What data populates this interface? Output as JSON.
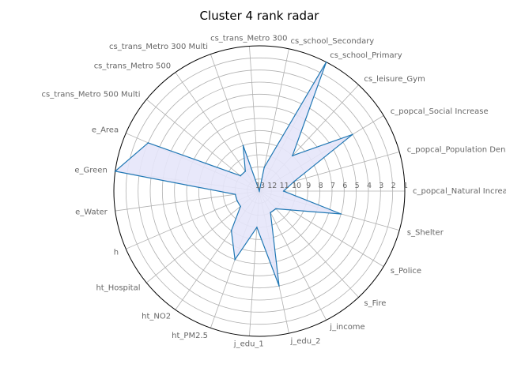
{
  "chart_data": {
    "type": "radar",
    "title": "Cluster 4 rank radar",
    "rank_max": 13,
    "rank_best": 1,
    "ring_labels": [
      "1",
      "2",
      "3",
      "4",
      "5",
      "6",
      "7",
      "8",
      "9",
      "10",
      "11",
      "12",
      "13"
    ],
    "grid": true,
    "colors": {
      "line": "#1f77b4",
      "fill": "#e6e6fa",
      "grid": "#b0b0b0",
      "frame": "#000000"
    },
    "series": [
      {
        "name": "Cluster 4",
        "categories": [
          "c_popcal_Natural Increase",
          "c_popcal_Population Density",
          "c_popcal_Social Increase",
          "cs_leisure_Gym",
          "cs_school_Primary",
          "cs_school_Secondary",
          "cs_trans_Metro 300",
          "cs_trans_Metro 300 Multi",
          "cs_trans_Metro 500",
          "cs_trans_Metro 500 Multi",
          "e_Area",
          "e_Green",
          "e_Water",
          "h",
          "ht_Hospital",
          "ht_NO2",
          "ht_PM2.5",
          "j_edu_1",
          "j_edu_2",
          "j_income",
          "s_Fire",
          "s_Police",
          "s_Shelter"
        ],
        "values": [
          11,
          10,
          4,
          9,
          1,
          11,
          13,
          9,
          11,
          11,
          3,
          1,
          11,
          11,
          11,
          9,
          7,
          10,
          5,
          11,
          11,
          10,
          6
        ]
      }
    ]
  }
}
